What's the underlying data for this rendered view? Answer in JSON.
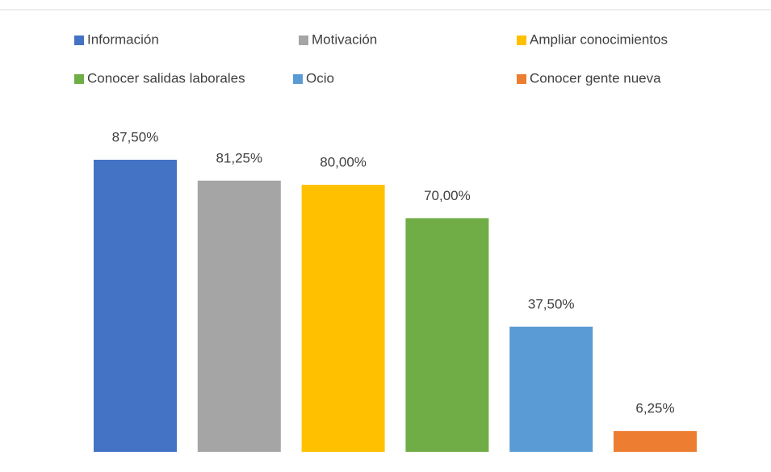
{
  "chart_data": {
    "type": "bar",
    "series": [
      {
        "name": "Información",
        "color": "#4472c4",
        "values": [
          87.5
        ],
        "value_labels": [
          "87,50%"
        ]
      },
      {
        "name": "Motivación",
        "color": "#a5a5a5",
        "values": [
          81.25
        ],
        "value_labels": [
          "81,25%"
        ]
      },
      {
        "name": "Ampliar conocimientos",
        "color": "#ffc000",
        "values": [
          80
        ],
        "value_labels": [
          "80,00%"
        ]
      },
      {
        "name": "Conocer salidas laborales",
        "color": "#70ad47",
        "values": [
          70
        ],
        "value_labels": [
          "70,00%"
        ]
      },
      {
        "name": "Ocio",
        "color": "#5b9bd5",
        "values": [
          37.5
        ],
        "value_labels": [
          "37,50%"
        ]
      },
      {
        "name": "Conocer gente nueva",
        "color": "#ed7d31",
        "values": [
          6.25
        ],
        "value_labels": [
          "6,25%"
        ]
      }
    ]
  }
}
